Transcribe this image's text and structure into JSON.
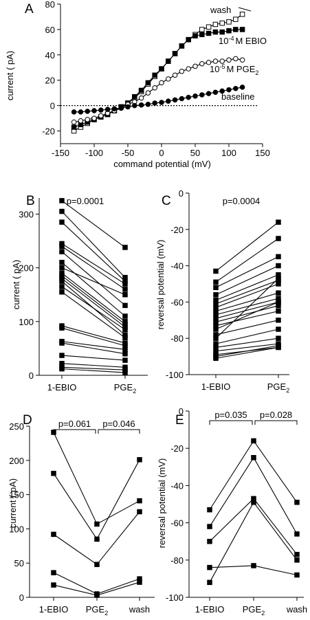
{
  "chart_data": [
    {
      "panel": "A",
      "type": "line",
      "title": "",
      "xlabel": "command potential (mV)",
      "ylabel": "current ( pA)",
      "xlim": [
        -150,
        150
      ],
      "ylim": [
        -30,
        80
      ],
      "xticks": [
        -150,
        -100,
        -50,
        0,
        50,
        100,
        150
      ],
      "yticks": [
        -20,
        0,
        20,
        40,
        60,
        80
      ],
      "zero_line": "dotted",
      "series": [
        {
          "name": "wash",
          "marker": "open-square",
          "x": [
            -130,
            -120,
            -110,
            -100,
            -90,
            -80,
            -70,
            -60,
            -50,
            -40,
            -30,
            -20,
            -10,
            0,
            10,
            20,
            30,
            40,
            50,
            60,
            70,
            80,
            90,
            100,
            110,
            120
          ],
          "y": [
            -20,
            -17,
            -14,
            -11,
            -9,
            -7,
            -4,
            -1,
            2,
            6,
            11,
            17,
            23,
            29,
            35,
            41,
            47,
            52,
            56,
            60,
            62,
            64,
            65,
            66,
            68,
            72
          ]
        },
        {
          "name": "EBIO",
          "marker": "filled-square",
          "x": [
            -130,
            -120,
            -110,
            -100,
            -90,
            -80,
            -70,
            -60,
            -50,
            -40,
            -30,
            -20,
            -10,
            0,
            10,
            20,
            30,
            40,
            50,
            60,
            70,
            80,
            90,
            100,
            110,
            120
          ],
          "y": [
            -17,
            -15,
            -13,
            -11,
            -9,
            -7,
            -4,
            -1,
            2,
            7,
            12,
            18,
            24,
            29,
            35,
            41,
            47,
            52,
            55,
            56,
            57,
            58,
            58,
            59,
            60,
            60
          ]
        },
        {
          "name": "PGE",
          "marker": "open-circle",
          "x": [
            -130,
            -120,
            -110,
            -100,
            -90,
            -80,
            -70,
            -60,
            -50,
            -40,
            -30,
            -20,
            -10,
            0,
            10,
            20,
            30,
            40,
            50,
            60,
            70,
            80,
            90,
            100,
            110,
            120
          ],
          "y": [
            -13,
            -12,
            -11,
            -10,
            -8,
            -6,
            -4,
            -2,
            1,
            3,
            6,
            10,
            14,
            18,
            21,
            24,
            27,
            29,
            31,
            33,
            34,
            35,
            35,
            36,
            37,
            36
          ]
        },
        {
          "name": "baseline",
          "marker": "filled-circle",
          "x": [
            -130,
            -120,
            -110,
            -100,
            -90,
            -80,
            -70,
            -60,
            -50,
            -40,
            -30,
            -20,
            -10,
            0,
            10,
            20,
            30,
            40,
            50,
            60,
            70,
            80,
            90,
            100,
            110,
            120
          ],
          "y": [
            -5,
            -5,
            -4.5,
            -4,
            -3.5,
            -3,
            -2.5,
            -2,
            -1,
            0,
            0.5,
            1,
            2,
            2.5,
            3.5,
            4.5,
            5.5,
            6.5,
            7.5,
            8.5,
            9.5,
            10.5,
            11.5,
            12.5,
            13.5,
            14.5
          ]
        }
      ],
      "labels": {
        "wash": "wash",
        "ebio_prefix": "10",
        "ebio_exp": "-4",
        "ebio_suffix": "M EBIO",
        "pge_prefix": "10",
        "pge_exp": "-5",
        "pge_suffix": "M PGE",
        "pge_sub": "2",
        "baseline": "baseline"
      }
    },
    {
      "panel": "B",
      "type": "line",
      "title": "p=0.0001",
      "xlabel": "",
      "ylabel": "current ( pA)",
      "ylim": [
        0,
        330
      ],
      "yticks": [
        0,
        100,
        200,
        300
      ],
      "categories": [
        "1-EBIO",
        "PGE"
      ],
      "category_sub": [
        "",
        "2"
      ],
      "pairs": [
        [
          325,
          238
        ],
        [
          305,
          182
        ],
        [
          285,
          175
        ],
        [
          245,
          170
        ],
        [
          240,
          160
        ],
        [
          230,
          130
        ],
        [
          210,
          110
        ],
        [
          200,
          150
        ],
        [
          190,
          100
        ],
        [
          185,
          95
        ],
        [
          180,
          90
        ],
        [
          175,
          75
        ],
        [
          165,
          85
        ],
        [
          155,
          70
        ],
        [
          92,
          60
        ],
        [
          88,
          55
        ],
        [
          63,
          48
        ],
        [
          60,
          40
        ],
        [
          37,
          28
        ],
        [
          22,
          15
        ],
        [
          15,
          10
        ],
        [
          12,
          5
        ]
      ]
    },
    {
      "panel": "C",
      "type": "line",
      "title": "p=0.0004",
      "xlabel": "",
      "ylabel": "reversal potential (mV)",
      "ylim": [
        -100,
        0
      ],
      "yticks": [
        -100,
        -80,
        -60,
        -40,
        -20,
        0
      ],
      "categories": [
        "1-EBIO",
        "PGE"
      ],
      "category_sub": [
        "",
        "2"
      ],
      "pairs": [
        [
          -43,
          -16
        ],
        [
          -49,
          -25
        ],
        [
          -52,
          -35
        ],
        [
          -56,
          -40
        ],
        [
          -59,
          -45
        ],
        [
          -61,
          -48
        ],
        [
          -63,
          -50
        ],
        [
          -65,
          -55
        ],
        [
          -67,
          -58
        ],
        [
          -69,
          -60
        ],
        [
          -71,
          -62
        ],
        [
          -73,
          -65
        ],
        [
          -75,
          -60
        ],
        [
          -78,
          -70
        ],
        [
          -80,
          -47
        ],
        [
          -83,
          -75
        ],
        [
          -85,
          -80
        ],
        [
          -87,
          -83
        ],
        [
          -89,
          -85
        ],
        [
          -90,
          -84
        ],
        [
          -91,
          -85
        ]
      ]
    },
    {
      "panel": "D",
      "type": "line",
      "title": "",
      "xlabel": "",
      "ylabel": "current ( pA)",
      "ylim": [
        0,
        250
      ],
      "yticks": [
        0,
        50,
        100,
        150,
        200,
        250
      ],
      "categories": [
        "1-EBIO",
        "PGE",
        "wash"
      ],
      "category_sub": [
        "",
        "2",
        ""
      ],
      "brackets": [
        "p=0.061",
        "p=0.046"
      ],
      "series": [
        [
          241,
          107,
          141
        ],
        [
          181,
          85,
          201
        ],
        [
          92,
          48,
          125
        ],
        [
          36,
          5,
          27
        ],
        [
          18,
          3,
          22
        ]
      ]
    },
    {
      "panel": "E",
      "type": "line",
      "title": "",
      "xlabel": "",
      "ylabel": "reversal potential (mV)",
      "ylim": [
        -100,
        0
      ],
      "yticks": [
        -100,
        -80,
        -60,
        -40,
        -20,
        0
      ],
      "categories": [
        "1-EBIO",
        "PGE",
        "wash"
      ],
      "category_sub": [
        "",
        "2",
        ""
      ],
      "brackets": [
        "p=0.035",
        "p=0.028"
      ],
      "series": [
        [
          -53,
          -16,
          -49
        ],
        [
          -62,
          -25,
          -66
        ],
        [
          -70,
          -47,
          -77
        ],
        [
          -92,
          -49,
          -80
        ],
        [
          -84,
          -83,
          -88
        ]
      ]
    }
  ]
}
